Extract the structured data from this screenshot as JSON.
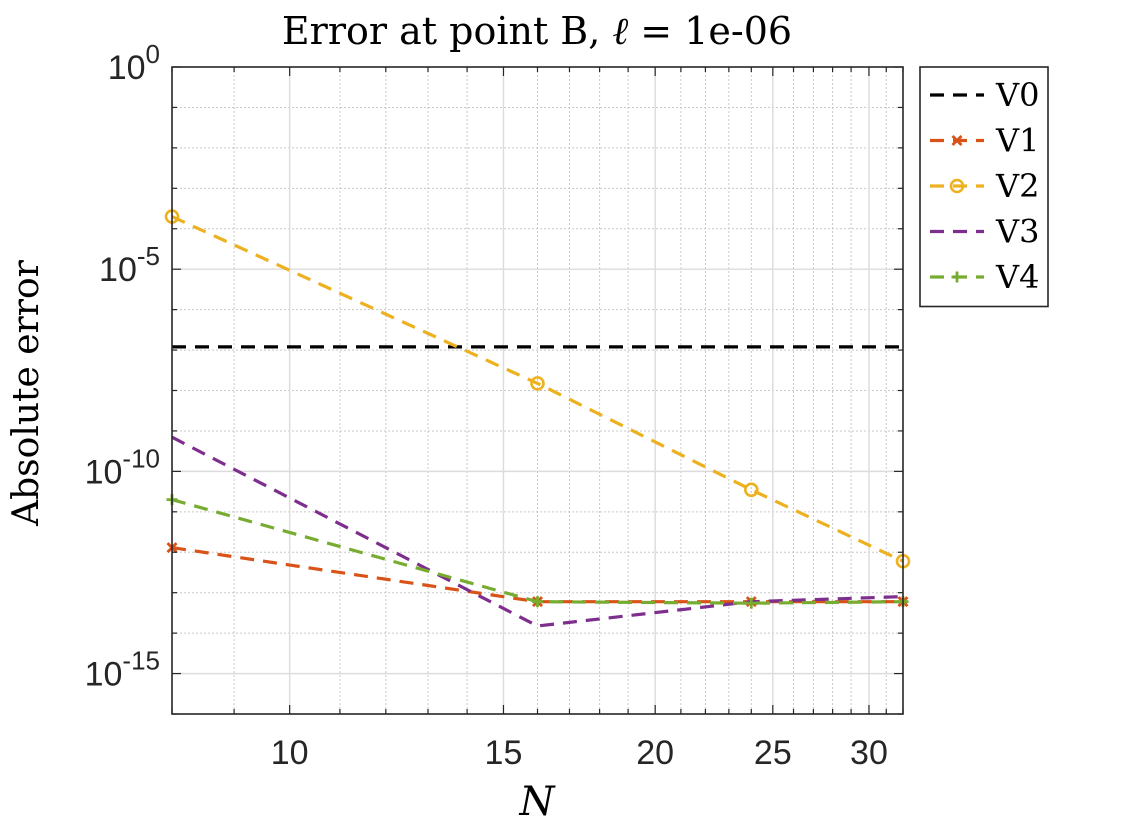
{
  "chart_data": {
    "type": "line",
    "title": "Error at point B, ℓ = 1e-06",
    "xlabel": "N",
    "ylabel": "Absolute error",
    "x_scale": "log",
    "y_scale": "log",
    "xlim": [
      8,
      32
    ],
    "ylim": [
      1e-16,
      1
    ],
    "x_ticks": [
      10,
      15,
      20,
      25,
      30
    ],
    "y_ticks": [
      {
        "value": 1,
        "base": "10",
        "exp": "0"
      },
      {
        "value": 1e-05,
        "base": "10",
        "exp": "-5"
      },
      {
        "value": 1e-10,
        "base": "10",
        "exp": "-10"
      },
      {
        "value": 1e-15,
        "base": "10",
        "exp": "-15"
      }
    ],
    "grid": true,
    "legend_position": "outside-top-right",
    "series": [
      {
        "name": "V0",
        "color": "#000000",
        "marker": "none",
        "x": [
          8,
          32
        ],
        "y": [
          1.2e-07,
          1.2e-07
        ]
      },
      {
        "name": "V1",
        "color": "#D95319",
        "marker": "x",
        "x": [
          8,
          16,
          24,
          32
        ],
        "y": [
          1.3e-12,
          6e-14,
          6e-14,
          6e-14
        ]
      },
      {
        "name": "V2",
        "color": "#EDB120",
        "marker": "o",
        "x": [
          8,
          16,
          24,
          32
        ],
        "y": [
          0.0002,
          1.5e-08,
          3.5e-11,
          6e-13
        ]
      },
      {
        "name": "V3",
        "color": "#7E2F8E",
        "marker": "none",
        "x": [
          8,
          16,
          24,
          32
        ],
        "y": [
          7e-10,
          1.5e-14,
          6e-14,
          8e-14
        ]
      },
      {
        "name": "V4",
        "color": "#77AC30",
        "marker": "+",
        "x": [
          8,
          16,
          24,
          32
        ],
        "y": [
          2e-11,
          6e-14,
          5.5e-14,
          6e-14
        ]
      }
    ]
  }
}
